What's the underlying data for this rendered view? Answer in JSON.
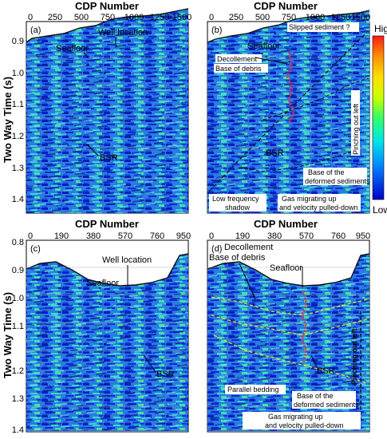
{
  "top_axis_title": "CDP Number",
  "bottom_axis_title": "CDP Number",
  "y_axis_title": "Two Way Time (s)",
  "top_x_ticks": [
    "0",
    "250",
    "500",
    "750",
    "1000",
    "1250",
    "1500"
  ],
  "bottom_x_ticks": [
    "0",
    "190",
    "380",
    "570",
    "760",
    "950"
  ],
  "top_y_ticks": [
    "0.9",
    "1.0",
    "1.1",
    "1.2",
    "1.3",
    "1.4"
  ],
  "bottom_y_ticks": [
    "0.8",
    "0.9",
    "1.0",
    "1.1",
    "1.2",
    "1.3",
    "1.4"
  ],
  "colorbar": {
    "high": "High",
    "low": "Low",
    "colors": [
      "#ff1a1a",
      "#ff8c00",
      "#ffe000",
      "#c8ff00",
      "#33ff66",
      "#00e6e6",
      "#0080ff",
      "#0000c8"
    ]
  },
  "panel_a": {
    "tag": "(a)",
    "well": "Well location",
    "seafloor": "Seafloor",
    "bsr": "BSR"
  },
  "panel_b": {
    "tag": "(b)",
    "seafloor": "Seafloor",
    "slipped": "Slipped sediment ?",
    "decollement": "Decollement",
    "base_debris": "Base of debris",
    "pinching": "Pinching out left",
    "bsr": "BSR",
    "base_deformed_1": "Base of the",
    "base_deformed_2": "deformed sediments",
    "low_freq_1": "Low frequency",
    "low_freq_2": "shadow",
    "gas_1": "Gas migrating up",
    "gas_2": "and velocity pulled-down"
  },
  "panel_c": {
    "tag": "(c)",
    "well": "Well location",
    "seafloor": "Seafloor",
    "bsr": "BSR"
  },
  "panel_d": {
    "tag": "(d)",
    "decollement": "Decollement",
    "base_debris": "Base of debris",
    "seafloor": "Seafloor",
    "pinching": "Pinching out left",
    "bsr": "BSR",
    "parallel": "Parallel bedding",
    "base_deformed_1": "Base of the",
    "base_deformed_2": "deformed sediments",
    "gas_1": "Gas migrating up",
    "gas_2": "and velocity pulled-down"
  }
}
